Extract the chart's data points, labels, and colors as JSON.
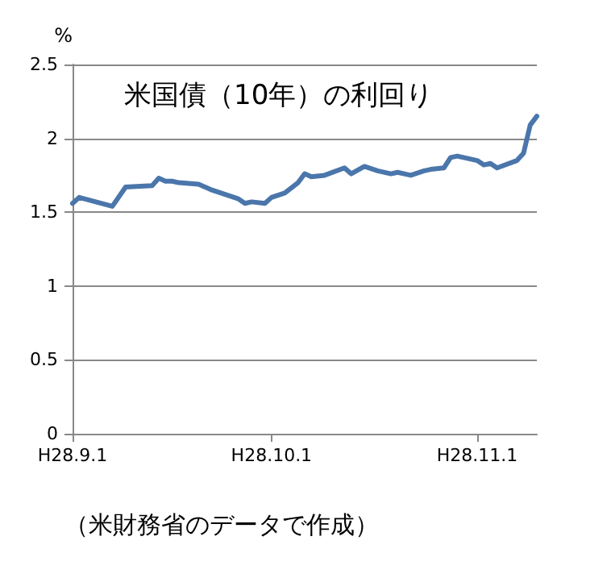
{
  "chart_data": {
    "type": "line",
    "title": "米国債（10年）の利回り",
    "ylabel": "%",
    "annotations": [
      "（米財務省のデータで作成）"
    ],
    "x": [
      "--09-01",
      "--09-02",
      "--09-07",
      "--09-09",
      "--09-13",
      "--09-14",
      "--09-15",
      "--09-16",
      "--09-17",
      "--09-20",
      "--09-22",
      "--09-24",
      "--09-26",
      "--09-27",
      "--09-28",
      "--09-30",
      "--10-01",
      "--10-03",
      "--10-05",
      "--10-06",
      "--10-07",
      "--10-09",
      "--10-12",
      "--10-13",
      "--10-15",
      "--10-17",
      "--10-19",
      "--10-20",
      "--10-22",
      "--10-24",
      "--10-25",
      "--10-27",
      "--10-28",
      "--10-29",
      "--11-01",
      "--11-02",
      "--11-03",
      "--11-04",
      "--11-07",
      "--11-08",
      "--11-09",
      "--11-10"
    ],
    "series": [
      {
        "color": "#4a76ab",
        "values": [
          1.56,
          1.6,
          1.54,
          1.67,
          1.68,
          1.73,
          1.71,
          1.71,
          1.7,
          1.69,
          1.65,
          1.62,
          1.59,
          1.56,
          1.57,
          1.56,
          1.6,
          1.63,
          1.7,
          1.76,
          1.74,
          1.75,
          1.8,
          1.76,
          1.81,
          1.78,
          1.76,
          1.77,
          1.75,
          1.78,
          1.79,
          1.8,
          1.87,
          1.88,
          1.85,
          1.82,
          1.83,
          1.8,
          1.85,
          1.9,
          2.09,
          2.15
        ]
      }
    ],
    "xlim": [
      "--09-01",
      "--11-10"
    ],
    "xticks": [
      {
        "value": "--09-01",
        "label": "H28.9.1"
      },
      {
        "value": "--10-01",
        "label": "H28.10.1"
      },
      {
        "value": "--11-01",
        "label": "H28.11.1"
      }
    ],
    "ylim": [
      0,
      2.5
    ],
    "yticks": [
      0,
      0.5,
      1,
      1.5,
      2,
      2.5
    ],
    "grid": "y",
    "marker": "none",
    "line_style": "solid"
  }
}
